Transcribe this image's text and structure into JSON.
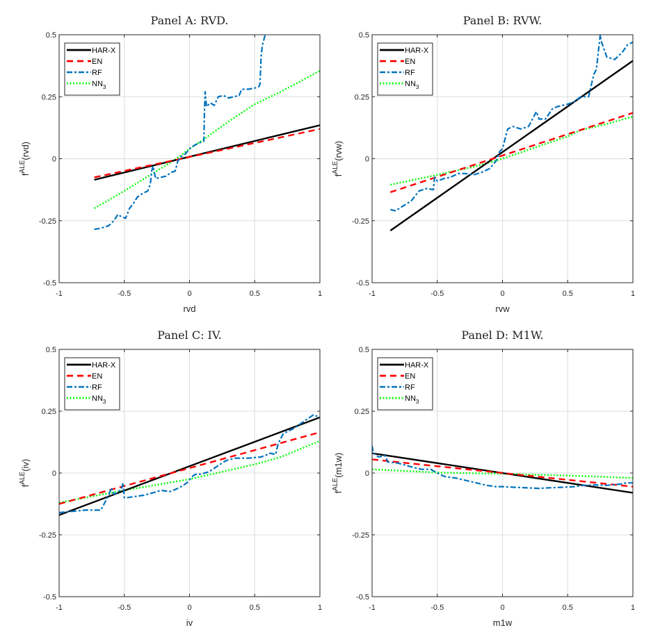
{
  "chart_data": [
    {
      "type": "line",
      "title": "Panel A: RVD.",
      "xlabel": "rvd",
      "ylabel": "f^ALE(rvd)",
      "ylabel_main": "f",
      "ylabel_sup": "ALE",
      "ylabel_arg": "(rvd)",
      "xlim": [
        -1,
        1
      ],
      "ylim": [
        -0.5,
        0.5
      ],
      "xticks": [
        -1,
        -0.5,
        0,
        0.5,
        1
      ],
      "yticks": [
        -0.5,
        -0.25,
        0,
        0.25,
        0.5
      ],
      "xtick_labels": [
        "-1",
        "-0.5",
        "0",
        "0.5",
        "1"
      ],
      "ytick_labels": [
        "-0.5",
        "-0.25",
        "0",
        "0.25",
        "0.5"
      ],
      "grid": true,
      "legend_position": "top-left",
      "series": [
        {
          "name": "HAR-X",
          "style": "solid",
          "color": "#000000",
          "x": [
            -0.73,
            1.0
          ],
          "y": [
            -0.085,
            0.135
          ]
        },
        {
          "name": "EN",
          "style": "dashed",
          "color": "#ff0000",
          "x": [
            -0.73,
            1.0
          ],
          "y": [
            -0.075,
            0.12
          ]
        },
        {
          "name": "RF",
          "style": "dashdot",
          "color": "#0072bd",
          "x": [
            -0.73,
            -0.68,
            -0.62,
            -0.58,
            -0.55,
            -0.52,
            -0.49,
            -0.46,
            -0.43,
            -0.4,
            -0.36,
            -0.32,
            -0.3,
            -0.29,
            -0.28,
            -0.26,
            -0.22,
            -0.18,
            -0.14,
            -0.11,
            -0.09,
            -0.06,
            -0.03,
            0.0,
            0.04,
            0.08,
            0.11,
            0.115,
            0.12,
            0.13,
            0.16,
            0.19,
            0.22,
            0.26,
            0.3,
            0.34,
            0.38,
            0.4,
            0.45,
            0.5,
            0.53,
            0.54,
            0.55,
            0.56,
            0.58
          ],
          "y": [
            -0.285,
            -0.28,
            -0.27,
            -0.25,
            -0.225,
            -0.235,
            -0.24,
            -0.2,
            -0.18,
            -0.155,
            -0.14,
            -0.13,
            -0.1,
            -0.05,
            -0.03,
            -0.08,
            -0.075,
            -0.07,
            -0.055,
            -0.05,
            -0.01,
            0.01,
            0.02,
            0.04,
            0.055,
            0.065,
            0.07,
            0.2,
            0.27,
            0.21,
            0.225,
            0.215,
            0.25,
            0.255,
            0.245,
            0.25,
            0.255,
            0.28,
            0.28,
            0.285,
            0.29,
            0.3,
            0.42,
            0.46,
            0.5
          ]
        },
        {
          "name": "NN3",
          "style": "dotted",
          "color": "#00ff00",
          "x": [
            -0.73,
            -0.5,
            -0.3,
            -0.1,
            0.0,
            0.1,
            0.3,
            0.5,
            0.7,
            1.0
          ],
          "y": [
            -0.2,
            -0.13,
            -0.065,
            0.0,
            0.04,
            0.075,
            0.15,
            0.22,
            0.27,
            0.355
          ]
        }
      ]
    },
    {
      "type": "line",
      "title": "Panel B: RVW.",
      "xlabel": "rvw",
      "ylabel": "f^ALE(rvw)",
      "ylabel_main": "f",
      "ylabel_sup": "ALE",
      "ylabel_arg": "(rvw)",
      "xlim": [
        -1,
        1
      ],
      "ylim": [
        -0.5,
        0.5
      ],
      "xticks": [
        -1,
        -0.5,
        0,
        0.5,
        1
      ],
      "yticks": [
        -0.5,
        -0.25,
        0,
        0.25,
        0.5
      ],
      "xtick_labels": [
        "-1",
        "-0.5",
        "0",
        "0.5",
        "1"
      ],
      "ytick_labels": [
        "-0.5",
        "-0.25",
        "0",
        "0.25",
        "0.5"
      ],
      "grid": true,
      "legend_position": "top-left",
      "series": [
        {
          "name": "HAR-X",
          "style": "solid",
          "color": "#000000",
          "x": [
            -0.86,
            1.0
          ],
          "y": [
            -0.29,
            0.395
          ]
        },
        {
          "name": "EN",
          "style": "dashed",
          "color": "#ff0000",
          "x": [
            -0.86,
            1.0
          ],
          "y": [
            -0.135,
            0.185
          ]
        },
        {
          "name": "RF",
          "style": "dashdot",
          "color": "#0072bd",
          "x": [
            -0.86,
            -0.82,
            -0.76,
            -0.7,
            -0.64,
            -0.58,
            -0.53,
            -0.52,
            -0.5,
            -0.45,
            -0.4,
            -0.34,
            -0.28,
            -0.22,
            -0.16,
            -0.1,
            -0.05,
            -0.02,
            0.0,
            0.04,
            0.08,
            0.14,
            0.2,
            0.26,
            0.28,
            0.33,
            0.38,
            0.42,
            0.5,
            0.55,
            0.6,
            0.66,
            0.7,
            0.72,
            0.75,
            0.76,
            0.8,
            0.86,
            0.92,
            0.96,
            1.0
          ],
          "y": [
            -0.205,
            -0.21,
            -0.19,
            -0.17,
            -0.13,
            -0.12,
            -0.125,
            -0.075,
            -0.09,
            -0.08,
            -0.075,
            -0.06,
            -0.06,
            -0.065,
            -0.055,
            -0.04,
            -0.01,
            0.03,
            0.04,
            0.12,
            0.13,
            0.12,
            0.13,
            0.19,
            0.16,
            0.16,
            0.2,
            0.21,
            0.22,
            0.23,
            0.25,
            0.25,
            0.34,
            0.36,
            0.5,
            0.47,
            0.41,
            0.4,
            0.43,
            0.46,
            0.47
          ]
        },
        {
          "name": "NN3",
          "style": "dotted",
          "color": "#00ff00",
          "x": [
            -0.86,
            -0.5,
            -0.2,
            0.0,
            0.25,
            0.5,
            0.6,
            0.8,
            1.0
          ],
          "y": [
            -0.105,
            -0.065,
            -0.03,
            0.0,
            0.045,
            0.09,
            0.115,
            0.14,
            0.17
          ]
        }
      ]
    },
    {
      "type": "line",
      "title": "Panel C: IV.",
      "xlabel": "iv",
      "ylabel": "f^ALE(iv)",
      "ylabel_main": "f",
      "ylabel_sup": "ALE",
      "ylabel_arg": "(iv)",
      "xlim": [
        -1,
        1
      ],
      "ylim": [
        -0.5,
        0.5
      ],
      "xticks": [
        -1,
        -0.5,
        0,
        0.5,
        1
      ],
      "yticks": [
        -0.5,
        -0.25,
        0,
        0.25,
        0.5
      ],
      "xtick_labels": [
        "-1",
        "-0.5",
        "0",
        "0.5",
        "1"
      ],
      "ytick_labels": [
        "-0.5",
        "-0.25",
        "0",
        "0.25",
        "0.5"
      ],
      "grid": true,
      "legend_position": "top-left",
      "series": [
        {
          "name": "HAR-X",
          "style": "solid",
          "color": "#000000",
          "x": [
            -1.0,
            1.0
          ],
          "y": [
            -0.17,
            0.225
          ]
        },
        {
          "name": "EN",
          "style": "dashed",
          "color": "#ff0000",
          "x": [
            -1.0,
            1.0
          ],
          "y": [
            -0.125,
            0.165
          ]
        },
        {
          "name": "RF",
          "style": "dashdot",
          "color": "#0072bd",
          "x": [
            -1.0,
            -0.9,
            -0.8,
            -0.68,
            -0.65,
            -0.62,
            -0.6,
            -0.58,
            -0.55,
            -0.52,
            -0.51,
            -0.5,
            -0.48,
            -0.42,
            -0.35,
            -0.28,
            -0.22,
            -0.15,
            -0.08,
            -0.02,
            0.03,
            0.05,
            0.08,
            0.15,
            0.22,
            0.28,
            0.35,
            0.45,
            0.55,
            0.62,
            0.66,
            0.68,
            0.72,
            0.8,
            0.88,
            0.95,
            1.0
          ],
          "y": [
            -0.16,
            -0.155,
            -0.15,
            -0.15,
            -0.12,
            -0.09,
            -0.06,
            -0.085,
            -0.08,
            -0.06,
            -0.04,
            -0.1,
            -0.1,
            -0.095,
            -0.09,
            -0.08,
            -0.07,
            -0.075,
            -0.06,
            -0.04,
            -0.01,
            -0.005,
            -0.005,
            0.005,
            0.03,
            0.05,
            0.06,
            0.06,
            0.065,
            0.08,
            0.075,
            0.12,
            0.16,
            0.18,
            0.21,
            0.235,
            0.225
          ]
        },
        {
          "name": "NN3",
          "style": "dotted",
          "color": "#00ff00",
          "x": [
            -1.0,
            -0.5,
            0.0,
            0.5,
            0.7,
            1.0
          ],
          "y": [
            -0.12,
            -0.07,
            -0.025,
            0.035,
            0.065,
            0.13
          ]
        }
      ]
    },
    {
      "type": "line",
      "title": "Panel D: M1W.",
      "xlabel": "m1w",
      "ylabel": "f^ALE(m1w)",
      "ylabel_main": "f",
      "ylabel_sup": "ALE",
      "ylabel_arg": "(m1w)",
      "xlim": [
        -1,
        1
      ],
      "ylim": [
        -0.5,
        0.5
      ],
      "xticks": [
        -1,
        -0.5,
        0,
        0.5,
        1
      ],
      "yticks": [
        -0.5,
        -0.25,
        0,
        0.25,
        0.5
      ],
      "xtick_labels": [
        "-1",
        "-0.5",
        "0",
        "0.5",
        "1"
      ],
      "ytick_labels": [
        "-0.5",
        "-0.25",
        "0",
        "0.25",
        "0.5"
      ],
      "grid": true,
      "legend_position": "top-left",
      "series": [
        {
          "name": "HAR-X",
          "style": "solid",
          "color": "#000000",
          "x": [
            -1.0,
            1.0
          ],
          "y": [
            0.08,
            -0.08
          ]
        },
        {
          "name": "EN",
          "style": "dashed",
          "color": "#ff0000",
          "x": [
            -1.0,
            1.0
          ],
          "y": [
            0.055,
            -0.055
          ]
        },
        {
          "name": "RF",
          "style": "dashdot",
          "color": "#0072bd",
          "x": [
            -1.0,
            -0.99,
            -0.95,
            -0.9,
            -0.88,
            -0.8,
            -0.7,
            -0.62,
            -0.55,
            -0.5,
            -0.44,
            -0.36,
            -0.28,
            -0.2,
            -0.12,
            -0.05,
            0.0,
            0.1,
            0.2,
            0.28,
            0.35,
            0.45,
            0.55,
            0.62,
            0.7,
            0.8,
            0.9,
            0.95,
            1.0
          ],
          "y": [
            0.11,
            0.08,
            0.065,
            0.07,
            0.045,
            0.04,
            0.025,
            0.015,
            0.015,
            0.0,
            -0.015,
            -0.02,
            -0.03,
            -0.04,
            -0.05,
            -0.055,
            -0.055,
            -0.058,
            -0.06,
            -0.062,
            -0.06,
            -0.058,
            -0.055,
            -0.05,
            -0.048,
            -0.05,
            -0.045,
            -0.04,
            -0.04
          ]
        },
        {
          "name": "NN3",
          "style": "dotted",
          "color": "#00ff00",
          "x": [
            -1.0,
            -0.5,
            0.0,
            0.5,
            1.0
          ],
          "y": [
            0.015,
            0.002,
            -0.003,
            -0.01,
            -0.02
          ]
        }
      ]
    }
  ],
  "legend": {
    "entries": [
      {
        "label": "HAR-X",
        "sub": ""
      },
      {
        "label": "EN",
        "sub": ""
      },
      {
        "label": "RF",
        "sub": ""
      },
      {
        "label": "NN",
        "sub": "3"
      }
    ]
  }
}
